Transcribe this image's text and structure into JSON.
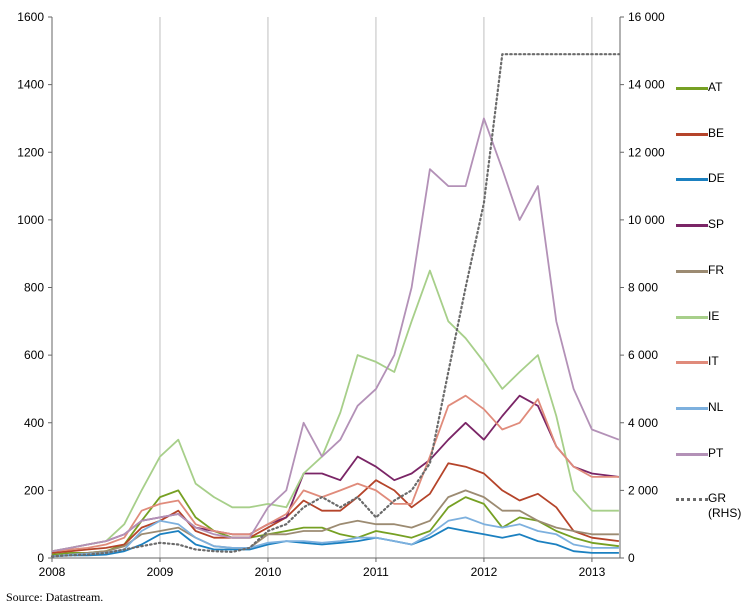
{
  "chart_data": {
    "type": "line",
    "source": "Source: Datastream.",
    "x": [
      2008,
      2008.17,
      2008.33,
      2008.5,
      2008.67,
      2008.83,
      2009,
      2009.17,
      2009.33,
      2009.5,
      2009.67,
      2009.83,
      2010,
      2010.17,
      2010.33,
      2010.5,
      2010.67,
      2010.83,
      2011,
      2011.17,
      2011.33,
      2011.5,
      2011.67,
      2011.83,
      2012,
      2012.17,
      2012.33,
      2012.5,
      2012.67,
      2012.83,
      2013,
      2013.25
    ],
    "xlim": [
      2008,
      2013.26
    ],
    "xticks": [
      2008,
      2009,
      2010,
      2011,
      2012,
      2013
    ],
    "ylim": [
      0,
      1600
    ],
    "yticks": [
      0,
      200,
      400,
      600,
      800,
      1000,
      1200,
      1400,
      1600
    ],
    "y2lim": [
      0,
      16000
    ],
    "y2ticks": [
      0,
      {
        "value": 2000,
        "label": "2 000"
      },
      {
        "value": 4000,
        "label": "4 000"
      },
      {
        "value": 6000,
        "label": "6 000"
      },
      {
        "value": 8000,
        "label": "8 000"
      },
      {
        "value": 10000,
        "label": "10 000"
      },
      {
        "value": 12000,
        "label": "12 000"
      },
      {
        "value": 14000,
        "label": "14 000"
      },
      {
        "value": 16000,
        "label": "16 000"
      }
    ],
    "grid": true,
    "series": [
      {
        "name": "AT",
        "color": "#76a023",
        "values": [
          10,
          15,
          15,
          20,
          40,
          110,
          180,
          200,
          120,
          80,
          60,
          60,
          70,
          80,
          90,
          90,
          70,
          60,
          80,
          70,
          60,
          80,
          150,
          180,
          160,
          90,
          120,
          110,
          80,
          60,
          45,
          35
        ]
      },
      {
        "name": "BE",
        "color": "#b5442a",
        "values": [
          15,
          20,
          25,
          30,
          40,
          90,
          110,
          140,
          80,
          60,
          60,
          60,
          90,
          120,
          170,
          140,
          140,
          180,
          230,
          200,
          150,
          190,
          280,
          270,
          250,
          200,
          170,
          190,
          150,
          80,
          60,
          50
        ]
      },
      {
        "name": "DE",
        "color": "#1b80c0",
        "values": [
          5,
          8,
          8,
          10,
          20,
          40,
          70,
          80,
          40,
          25,
          25,
          25,
          40,
          50,
          45,
          40,
          45,
          50,
          60,
          50,
          40,
          60,
          90,
          80,
          70,
          60,
          70,
          50,
          40,
          20,
          15,
          15
        ]
      },
      {
        "name": "SP",
        "color": "#7a2566",
        "values": [
          20,
          30,
          40,
          50,
          70,
          110,
          120,
          130,
          90,
          80,
          70,
          70,
          100,
          120,
          250,
          250,
          230,
          300,
          270,
          230,
          250,
          290,
          350,
          400,
          350,
          420,
          480,
          450,
          330,
          270,
          250,
          240
        ]
      },
      {
        "name": "FR",
        "color": "#9c8b72",
        "values": [
          5,
          10,
          15,
          20,
          35,
          70,
          80,
          90,
          60,
          35,
          30,
          30,
          70,
          70,
          80,
          80,
          100,
          110,
          100,
          100,
          90,
          110,
          180,
          200,
          180,
          140,
          140,
          110,
          90,
          80,
          70,
          70
        ]
      },
      {
        "name": "IE",
        "color": "#a7cf8a",
        "values": [
          20,
          30,
          40,
          50,
          100,
          200,
          300,
          350,
          220,
          180,
          150,
          150,
          160,
          150,
          250,
          300,
          430,
          600,
          580,
          550,
          700,
          850,
          700,
          650,
          580,
          500,
          550,
          600,
          420,
          200,
          140,
          140
        ]
      },
      {
        "name": "IT",
        "color": "#e08b7b",
        "values": [
          20,
          25,
          30,
          40,
          60,
          140,
          160,
          170,
          100,
          80,
          70,
          70,
          100,
          130,
          200,
          180,
          200,
          220,
          200,
          160,
          160,
          300,
          450,
          480,
          440,
          380,
          400,
          470,
          330,
          270,
          240,
          240
        ]
      },
      {
        "name": "NL",
        "color": "#7db0de",
        "values": [
          5,
          10,
          12,
          15,
          25,
          80,
          110,
          100,
          60,
          35,
          30,
          30,
          45,
          50,
          50,
          45,
          50,
          60,
          60,
          50,
          40,
          70,
          110,
          120,
          100,
          90,
          100,
          80,
          70,
          40,
          30,
          30
        ]
      },
      {
        "name": "PT",
        "color": "#b391b7",
        "values": [
          20,
          30,
          40,
          50,
          70,
          110,
          120,
          130,
          90,
          70,
          60,
          60,
          150,
          200,
          400,
          300,
          350,
          450,
          500,
          600,
          800,
          1150,
          1100,
          1100,
          1300,
          1150,
          1000,
          1100,
          700,
          500,
          380,
          350
        ]
      },
      {
        "name": "GR (RHS)",
        "color": "#6b6b6b",
        "dash": "dotted",
        "axis": "y2",
        "values": [
          50,
          80,
          100,
          150,
          250,
          350,
          450,
          400,
          250,
          200,
          180,
          300,
          800,
          1000,
          1500,
          1800,
          1500,
          1800,
          1200,
          1700,
          2000,
          2800,
          5500,
          8000,
          10500,
          14900,
          14900,
          14900,
          14900,
          14900,
          14900,
          14900
        ]
      }
    ]
  }
}
